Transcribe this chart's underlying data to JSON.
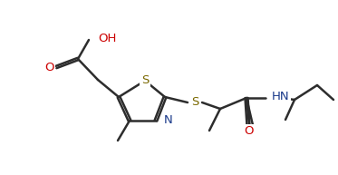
{
  "bg_color": "#ffffff",
  "line_color": "#2d2d2d",
  "lw": 1.8,
  "fs": 9.5,
  "tc_N": "#1a3a8a",
  "tc_O": "#cc0000",
  "tc_S": "#7a6800",
  "figsize": [
    3.73,
    1.93
  ],
  "dpi": 100,
  "xlim": [
    0,
    373
  ],
  "ylim": [
    0,
    193
  ]
}
